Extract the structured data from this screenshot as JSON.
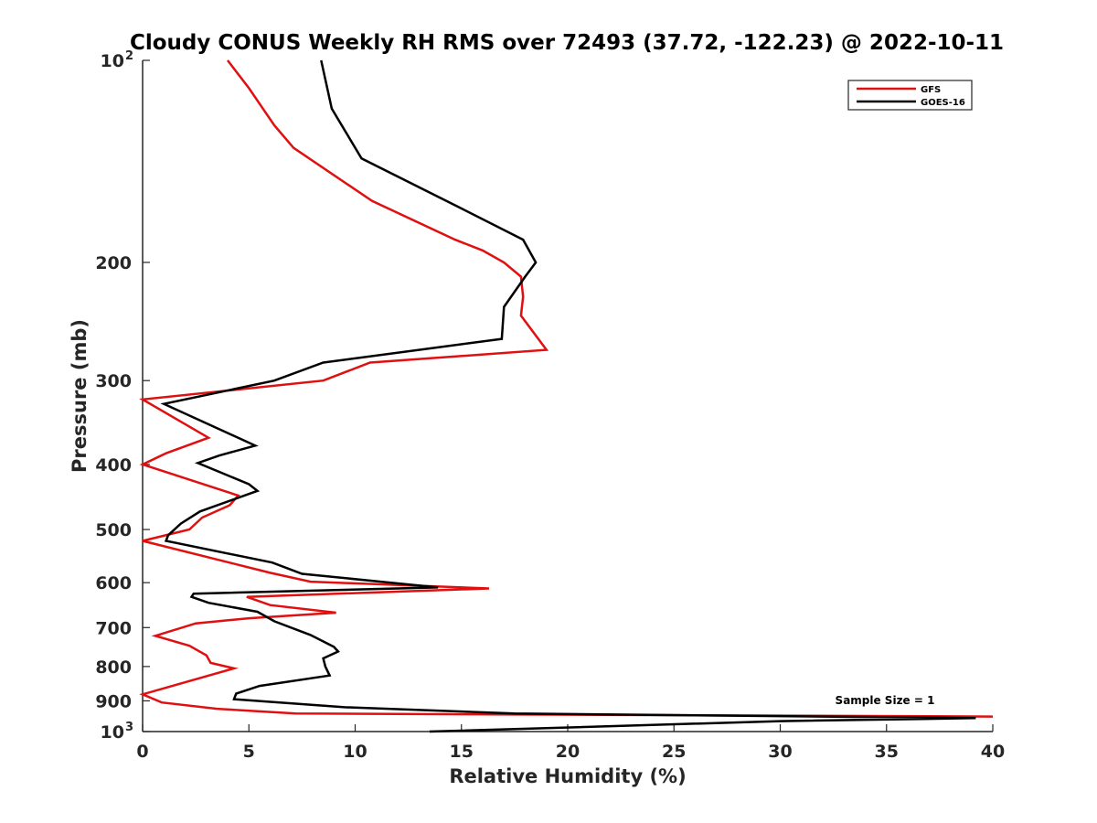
{
  "chart_data": {
    "type": "line",
    "title": "Cloudy CONUS Weekly RH RMS over 72493 (37.72, -122.23) @ 2022-10-11",
    "xlabel": "Relative Humidity (%)",
    "ylabel": "Pressure (mb)",
    "xlim": [
      0,
      40
    ],
    "ylim": [
      100,
      1000
    ],
    "y_scale": "log",
    "y_reversed": true,
    "x_ticks": [
      "0",
      "5",
      "10",
      "15",
      "20",
      "25",
      "30",
      "35",
      "40"
    ],
    "y_ticks": [
      {
        "value": 100,
        "label": "10",
        "exponent": "2"
      },
      {
        "value": 200,
        "label": "200"
      },
      {
        "value": 300,
        "label": "300"
      },
      {
        "value": 400,
        "label": "400"
      },
      {
        "value": 500,
        "label": "500"
      },
      {
        "value": 600,
        "label": "600"
      },
      {
        "value": 700,
        "label": "700"
      },
      {
        "value": 800,
        "label": "800"
      },
      {
        "value": 900,
        "label": "900"
      },
      {
        "value": 1000,
        "label": "10",
        "exponent": "3"
      }
    ],
    "grid": false,
    "legend_position": "top-right",
    "annotation": "Sample Size = 1",
    "series": [
      {
        "name": "GFS",
        "color": "#e01010",
        "points": [
          [
            4.0,
            100
          ],
          [
            5.0,
            110
          ],
          [
            6.2,
            125
          ],
          [
            7.1,
            135
          ],
          [
            10.8,
            162
          ],
          [
            14.7,
            185
          ],
          [
            16.0,
            192
          ],
          [
            17.0,
            200
          ],
          [
            17.8,
            210
          ],
          [
            17.9,
            225
          ],
          [
            17.8,
            240
          ],
          [
            19.0,
            270
          ],
          [
            10.7,
            282
          ],
          [
            8.5,
            300
          ],
          [
            0.0,
            320
          ],
          [
            3.1,
            365
          ],
          [
            1.1,
            385
          ],
          [
            0.0,
            400
          ],
          [
            4.5,
            445
          ],
          [
            4.1,
            460
          ],
          [
            2.8,
            480
          ],
          [
            2.2,
            500
          ],
          [
            0.0,
            520
          ],
          [
            6.0,
            580
          ],
          [
            7.9,
            598
          ],
          [
            16.3,
            612
          ],
          [
            4.9,
            630
          ],
          [
            6.0,
            648
          ],
          [
            9.1,
            665
          ],
          [
            5.0,
            678
          ],
          [
            2.5,
            690
          ],
          [
            0.6,
            720
          ],
          [
            2.2,
            745
          ],
          [
            3.0,
            770
          ],
          [
            3.2,
            790
          ],
          [
            4.3,
            805
          ],
          [
            1.0,
            862
          ],
          [
            0.0,
            880
          ],
          [
            0.9,
            905
          ],
          [
            3.5,
            925
          ],
          [
            7.2,
            940
          ],
          [
            40.0,
            950
          ]
        ]
      },
      {
        "name": "GOES-16",
        "color": "#000000",
        "points": [
          [
            8.4,
            100
          ],
          [
            8.9,
            118
          ],
          [
            10.3,
            140
          ],
          [
            14.8,
            165
          ],
          [
            17.9,
            185
          ],
          [
            18.5,
            200
          ],
          [
            18.0,
            210
          ],
          [
            17.0,
            233
          ],
          [
            16.9,
            260
          ],
          [
            8.5,
            282
          ],
          [
            6.2,
            300
          ],
          [
            1.0,
            325
          ],
          [
            5.3,
            375
          ],
          [
            3.6,
            388
          ],
          [
            2.6,
            398
          ],
          [
            5.0,
            428
          ],
          [
            5.4,
            438
          ],
          [
            2.7,
            470
          ],
          [
            1.8,
            490
          ],
          [
            1.2,
            510
          ],
          [
            1.1,
            520
          ],
          [
            6.1,
            560
          ],
          [
            7.5,
            582
          ],
          [
            13.9,
            610
          ],
          [
            2.4,
            623
          ],
          [
            2.3,
            630
          ],
          [
            3.1,
            643
          ],
          [
            5.4,
            663
          ],
          [
            6.2,
            685
          ],
          [
            7.9,
            718
          ],
          [
            9.0,
            748
          ],
          [
            9.2,
            760
          ],
          [
            8.5,
            778
          ],
          [
            8.6,
            800
          ],
          [
            8.8,
            825
          ],
          [
            5.5,
            855
          ],
          [
            4.4,
            878
          ],
          [
            4.3,
            895
          ],
          [
            9.5,
            920
          ],
          [
            17.5,
            940
          ],
          [
            39.2,
            955
          ],
          [
            30.0,
            965
          ],
          [
            13.5,
            1000
          ]
        ]
      }
    ]
  }
}
